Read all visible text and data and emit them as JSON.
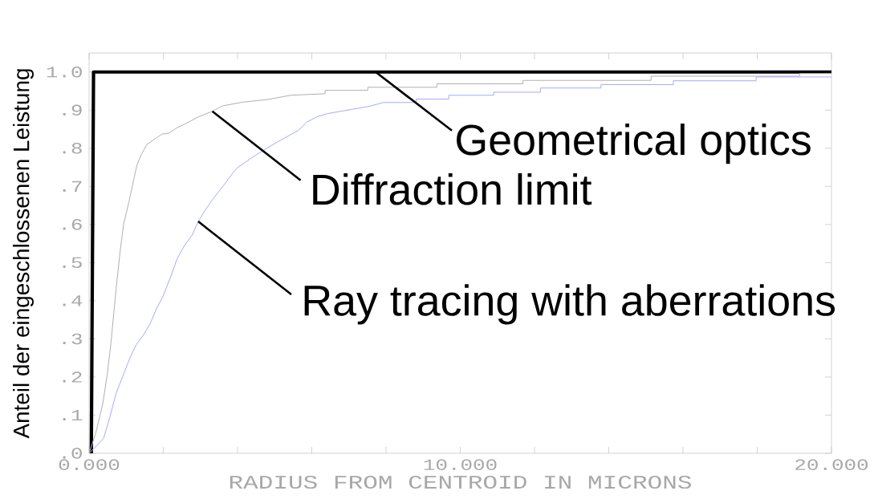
{
  "chart_data": {
    "type": "line",
    "xlabel": "RADIUS FROM CENTROID IN MICRONS",
    "ylabel": "Anteil der eingeschlossenen Leistung",
    "xlim": [
      0,
      20
    ],
    "ylim": [
      0,
      1.05
    ],
    "xticks": [
      {
        "value": 0,
        "label": "0.000"
      },
      {
        "value": 2,
        "label": null
      },
      {
        "value": 4,
        "label": null
      },
      {
        "value": 6,
        "label": null
      },
      {
        "value": 8,
        "label": null
      },
      {
        "value": 10,
        "label": "10.000"
      },
      {
        "value": 12,
        "label": null
      },
      {
        "value": 14,
        "label": null
      },
      {
        "value": 16,
        "label": null
      },
      {
        "value": 18,
        "label": null
      },
      {
        "value": 20,
        "label": "20.000"
      }
    ],
    "yticks": [
      {
        "value": 0,
        "label": ".0"
      },
      {
        "value": 0.1,
        "label": ".1"
      },
      {
        "value": 0.2,
        "label": ".2"
      },
      {
        "value": 0.3,
        "label": ".3"
      },
      {
        "value": 0.4,
        "label": ".4"
      },
      {
        "value": 0.5,
        "label": ".5"
      },
      {
        "value": 0.6,
        "label": ".6"
      },
      {
        "value": 0.7,
        "label": ".7"
      },
      {
        "value": 0.8,
        "label": ".8"
      },
      {
        "value": 0.9,
        "label": ".9"
      },
      {
        "value": 1,
        "label": "1.0"
      }
    ],
    "series": [
      {
        "color": "#000000",
        "x": [
          0.06,
          0.12,
          20
        ],
        "values": [
          0,
          1.0,
          1.0
        ]
      },
      {
        "color": "#b0b0b0",
        "x": [
          0,
          0.18,
          0.37,
          0.49,
          0.59,
          0.66,
          0.73,
          0.83,
          0.93,
          1.07,
          1.21,
          1.29,
          1.41,
          1.55,
          1.75,
          1.96,
          2.16,
          2.37,
          2.57,
          2.94,
          3.32,
          3.59,
          4.14,
          4.82,
          5.43,
          6.36,
          6.36,
          7.51,
          7.51,
          9.37,
          9.37,
          11.69,
          11.69,
          15.14,
          15.14,
          19.14,
          19.14,
          20
        ],
        "values": [
          0,
          0.053,
          0.13,
          0.207,
          0.29,
          0.362,
          0.432,
          0.524,
          0.601,
          0.658,
          0.721,
          0.756,
          0.784,
          0.809,
          0.823,
          0.837,
          0.84,
          0.854,
          0.863,
          0.882,
          0.897,
          0.911,
          0.921,
          0.928,
          0.939,
          0.943,
          0.952,
          0.952,
          0.96,
          0.96,
          0.969,
          0.969,
          0.978,
          0.978,
          0.989,
          0.989,
          0.996,
          0.996
        ]
      },
      {
        "color": "#a8a8ff",
        "x": [
          0,
          0.39,
          0.56,
          0.73,
          0.9,
          1.1,
          1.27,
          1.48,
          1.65,
          1.82,
          1.99,
          2.19,
          2.37,
          2.57,
          2.78,
          2.94,
          3.12,
          3.32,
          3.66,
          3.87,
          4.0,
          4.41,
          4.82,
          5.23,
          5.64,
          5.87,
          6.15,
          6.43,
          7.08,
          7.55,
          7.93,
          8.81,
          8.81,
          9.69,
          9.69,
          10.9,
          10.9,
          12.16,
          12.16,
          13.79,
          13.79,
          15.74,
          15.74,
          17.97,
          17.97,
          20
        ],
        "values": [
          0,
          0.039,
          0.095,
          0.158,
          0.2,
          0.25,
          0.285,
          0.313,
          0.341,
          0.38,
          0.411,
          0.461,
          0.51,
          0.545,
          0.573,
          0.608,
          0.636,
          0.665,
          0.707,
          0.735,
          0.749,
          0.777,
          0.802,
          0.825,
          0.847,
          0.869,
          0.883,
          0.891,
          0.902,
          0.91,
          0.92,
          0.92,
          0.929,
          0.929,
          0.939,
          0.939,
          0.947,
          0.947,
          0.958,
          0.958,
          0.967,
          0.967,
          0.977,
          0.977,
          0.987,
          0.987
        ]
      }
    ],
    "annotations": [
      {
        "text": "Geometrical optics",
        "x": 7.72,
        "y": 1.0
      },
      {
        "text": "Diffraction limit",
        "x": 3.32,
        "y": 0.897
      },
      {
        "text": "Ray tracing with aberrations",
        "x": 2.94,
        "y": 0.608
      }
    ]
  }
}
